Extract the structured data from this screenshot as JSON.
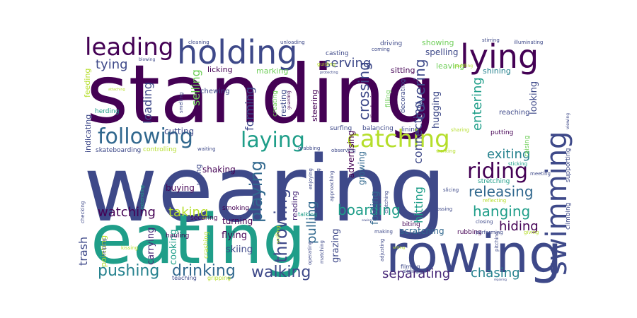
{
  "wordcloud": {
    "palette": {
      "dark_purple": "#440154",
      "purple": "#482878",
      "indigo": "#3e4989",
      "blue": "#31688e",
      "teal_blue": "#26828e",
      "teal": "#1f9e89",
      "green_teal": "#35b779",
      "green": "#6ece58",
      "lime": "#b5de2b",
      "yellow": "#fde725"
    },
    "words": [
      {
        "text": "standing",
        "weight": 100,
        "color": "#440154"
      },
      {
        "text": "wearing",
        "weight": 96,
        "color": "#3e4989"
      },
      {
        "text": "eating",
        "weight": 74,
        "color": "#1f9e89"
      },
      {
        "text": "rowing",
        "weight": 56,
        "color": "#3e4989"
      },
      {
        "text": "holding",
        "weight": 40,
        "color": "#3e4989"
      },
      {
        "text": "lying",
        "weight": 38,
        "color": "#440154"
      },
      {
        "text": "swimming",
        "weight": 36,
        "color": "#3e4989"
      },
      {
        "text": "leading",
        "weight": 28,
        "color": "#440154"
      },
      {
        "text": "following",
        "weight": 26,
        "color": "#31688e"
      },
      {
        "text": "laying",
        "weight": 25,
        "color": "#1f9e89"
      },
      {
        "text": "catching",
        "weight": 25,
        "color": "#b5de2b"
      },
      {
        "text": "riding",
        "weight": 22,
        "color": "#440154"
      },
      {
        "text": "pushing",
        "weight": 19,
        "color": "#26828e"
      },
      {
        "text": "drinking",
        "weight": 19,
        "color": "#31688e"
      },
      {
        "text": "walking",
        "weight": 19,
        "color": "#3e4989"
      },
      {
        "text": "throwing",
        "weight": 18,
        "color": "#3e4989"
      },
      {
        "text": "playing",
        "weight": 17,
        "color": "#31688e"
      },
      {
        "text": "watching",
        "weight": 15,
        "color": "#440154"
      },
      {
        "text": "boarding",
        "weight": 15,
        "color": "#1f9e89"
      },
      {
        "text": "separating",
        "weight": 15,
        "color": "#482878"
      },
      {
        "text": "releasing",
        "weight": 14,
        "color": "#31688e"
      },
      {
        "text": "hanging",
        "weight": 14,
        "color": "#1f9e89"
      },
      {
        "text": "tying",
        "weight": 13,
        "color": "#3e4989"
      },
      {
        "text": "exiting",
        "weight": 13,
        "color": "#26828e"
      },
      {
        "text": "chasing",
        "weight": 12,
        "color": "#26828e"
      },
      {
        "text": "taking",
        "weight": 13,
        "color": "#b5de2b"
      },
      {
        "text": "covering",
        "weight": 13,
        "color": "#3e4989"
      },
      {
        "text": "crossing",
        "weight": 12,
        "color": "#3e4989"
      },
      {
        "text": "pulling",
        "weight": 12,
        "color": "#31688e"
      },
      {
        "text": "serving",
        "weight": 12,
        "color": "#3e4989"
      },
      {
        "text": "hiding",
        "weight": 12,
        "color": "#440154"
      },
      {
        "text": "connecting",
        "weight": 11,
        "color": "#3e4989"
      },
      {
        "text": "entering",
        "weight": 11,
        "color": "#1f9e89"
      },
      {
        "text": "forming",
        "weight": 11,
        "color": "#3e4989"
      },
      {
        "text": "selling",
        "weight": 11,
        "color": "#6ece58"
      },
      {
        "text": "loading",
        "weight": 10,
        "color": "#3e4989"
      },
      {
        "text": "trash",
        "weight": 10,
        "color": "#3e4989"
      },
      {
        "text": "hitting",
        "weight": 10,
        "color": "#1f9e89"
      },
      {
        "text": "folding",
        "weight": 9,
        "color": "#31688e"
      },
      {
        "text": "cutting",
        "weight": 9,
        "color": "#3e4989"
      },
      {
        "text": "carrying",
        "weight": 9,
        "color": "#482878"
      },
      {
        "text": "cooking",
        "weight": 9,
        "color": "#1f9e89"
      },
      {
        "text": "flying",
        "weight": 9,
        "color": "#440154"
      },
      {
        "text": "skiing",
        "weight": 9,
        "color": "#3e4989"
      },
      {
        "text": "turning",
        "weight": 8,
        "color": "#440154"
      },
      {
        "text": "buying",
        "weight": 8,
        "color": "#440154"
      },
      {
        "text": "shaking",
        "weight": 8,
        "color": "#440154"
      },
      {
        "text": "scratching",
        "weight": 8,
        "color": "#31688e"
      },
      {
        "text": "spelling",
        "weight": 8,
        "color": "#3e4989"
      },
      {
        "text": "showing",
        "weight": 8,
        "color": "#6ece58"
      },
      {
        "text": "leaving",
        "weight": 8,
        "color": "#6ece58"
      },
      {
        "text": "shining",
        "weight": 8,
        "color": "#26828e"
      },
      {
        "text": "marking",
        "weight": 8,
        "color": "#6ece58"
      },
      {
        "text": "looking",
        "weight": 8,
        "color": "#3e4989"
      },
      {
        "text": "hugging",
        "weight": 8,
        "color": "#3e4989"
      },
      {
        "text": "grazing",
        "weight": 8,
        "color": "#3e4989"
      },
      {
        "text": "reading",
        "weight": 8,
        "color": "#482878"
      },
      {
        "text": "advertising",
        "weight": 8,
        "color": "#440154"
      },
      {
        "text": "growing",
        "weight": 8,
        "color": "#31688e"
      },
      {
        "text": "sitting",
        "weight": 7,
        "color": "#440154"
      },
      {
        "text": "licking",
        "weight": 7,
        "color": "#440154"
      },
      {
        "text": "resting",
        "weight": 7,
        "color": "#3e4989"
      },
      {
        "text": "steering",
        "weight": 7,
        "color": "#440154"
      },
      {
        "text": "using",
        "weight": 7,
        "color": "#3e4989"
      },
      {
        "text": "pointing",
        "weight": 7,
        "color": "#b5de2b"
      },
      {
        "text": "feeding",
        "weight": 7,
        "color": "#b5de2b"
      },
      {
        "text": "indicating",
        "weight": 7,
        "color": "#3e4989"
      },
      {
        "text": "chewing",
        "weight": 6,
        "color": "#3e4989"
      },
      {
        "text": "reaching",
        "weight": 6,
        "color": "#3e4989"
      },
      {
        "text": "stretching",
        "weight": 6,
        "color": "#1f9e89"
      },
      {
        "text": "surfing",
        "weight": 6,
        "color": "#3e4989"
      },
      {
        "text": "balancing",
        "weight": 6,
        "color": "#3e4989"
      },
      {
        "text": "lining",
        "weight": 6,
        "color": "#3e4989"
      },
      {
        "text": "putting",
        "weight": 6,
        "color": "#440154"
      },
      {
        "text": "filling",
        "weight": 6,
        "color": "#6ece58"
      },
      {
        "text": "displaying",
        "weight": 6,
        "color": "#440154"
      },
      {
        "text": "decorating",
        "weight": 6,
        "color": "#3e4989"
      },
      {
        "text": "creating",
        "weight": 6,
        "color": "#6ece58"
      },
      {
        "text": "supporting",
        "weight": 6,
        "color": "#3e4989"
      },
      {
        "text": "climbing",
        "weight": 6,
        "color": "#3e4989"
      },
      {
        "text": "raising",
        "weight": 6,
        "color": "#6ece58"
      },
      {
        "text": "biting",
        "weight": 6,
        "color": "#440154"
      },
      {
        "text": "rubbing",
        "weight": 6,
        "color": "#440154"
      },
      {
        "text": "casting",
        "weight": 6,
        "color": "#3e4989"
      },
      {
        "text": "driving",
        "weight": 6,
        "color": "#3e4989"
      },
      {
        "text": "herding",
        "weight": 6,
        "color": "#1f9e89"
      },
      {
        "text": "controlling",
        "weight": 6,
        "color": "#b5de2b"
      },
      {
        "text": "skateboarding",
        "weight": 6,
        "color": "#3e4989"
      },
      {
        "text": "smoking",
        "weight": 6,
        "color": "#440154"
      },
      {
        "text": "securing",
        "weight": 6,
        "color": "#440154"
      },
      {
        "text": "hauling",
        "weight": 6,
        "color": "#440154"
      },
      {
        "text": "crashing",
        "weight": 6,
        "color": "#b5de2b"
      },
      {
        "text": "teaching",
        "weight": 5,
        "color": "#3e4989"
      },
      {
        "text": "gripping",
        "weight": 5,
        "color": "#b5de2b"
      },
      {
        "text": "filming",
        "weight": 5,
        "color": "#3e4989"
      },
      {
        "text": "sliding",
        "weight": 5,
        "color": "#3e4989"
      },
      {
        "text": "working",
        "weight": 5,
        "color": "#b5de2b"
      },
      {
        "text": "sharing",
        "weight": 5,
        "color": "#b5de2b"
      },
      {
        "text": "checking",
        "weight": 5,
        "color": "#3e4989"
      },
      {
        "text": "helping",
        "weight": 5,
        "color": "#3e4989"
      },
      {
        "text": "kissing",
        "weight": 5,
        "color": "#b5de2b"
      },
      {
        "text": "extending",
        "weight": 5,
        "color": "#1f9e89"
      },
      {
        "text": "smelling",
        "weight": 5,
        "color": "#3e4989"
      },
      {
        "text": "attaching",
        "weight": 4,
        "color": "#b5de2b"
      },
      {
        "text": "blowing",
        "weight": 4,
        "color": "#3e4989"
      },
      {
        "text": "cleaning",
        "weight": 5,
        "color": "#3e4989"
      },
      {
        "text": "unloading",
        "weight": 5,
        "color": "#3e4989"
      },
      {
        "text": "coming",
        "weight": 5,
        "color": "#3e4989"
      },
      {
        "text": "stirring",
        "weight": 5,
        "color": "#3e4989"
      },
      {
        "text": "illuminating",
        "weight": 5,
        "color": "#3e4989"
      },
      {
        "text": "guiding",
        "weight": 5,
        "color": "#b5de2b"
      },
      {
        "text": "protecting",
        "weight": 4,
        "color": "#3e4989"
      },
      {
        "text": "paddling",
        "weight": 5,
        "color": "#b5de2b"
      },
      {
        "text": "guarding",
        "weight": 4,
        "color": "#440154"
      },
      {
        "text": "viewing",
        "weight": 4,
        "color": "#3e4989"
      },
      {
        "text": "sticking",
        "weight": 5,
        "color": "#1f9e89"
      },
      {
        "text": "meeting",
        "weight": 5,
        "color": "#3e4989"
      },
      {
        "text": "waiting",
        "weight": 5,
        "color": "#3e4989"
      },
      {
        "text": "grabbing",
        "weight": 5,
        "color": "#3e4989"
      },
      {
        "text": "observing",
        "weight": 5,
        "color": "#3e4989"
      },
      {
        "text": "enjoying",
        "weight": 5,
        "color": "#3e4989"
      },
      {
        "text": "preparing",
        "weight": 5,
        "color": "#3e4989"
      },
      {
        "text": "approaching",
        "weight": 5,
        "color": "#3e4989"
      },
      {
        "text": "clutching",
        "weight": 5,
        "color": "#3e4989"
      },
      {
        "text": "slicing",
        "weight": 5,
        "color": "#3e4989"
      },
      {
        "text": "tossing",
        "weight": 5,
        "color": "#3e4989"
      },
      {
        "text": "reflecting",
        "weight": 5,
        "color": "#b5de2b"
      },
      {
        "text": "sniffing",
        "weight": 5,
        "color": "#b5de2b"
      },
      {
        "text": "talking",
        "weight": 5,
        "color": "#1f9e89"
      },
      {
        "text": "closing",
        "weight": 5,
        "color": "#3e4989"
      },
      {
        "text": "performing",
        "weight": 5,
        "color": "#3e4989"
      },
      {
        "text": "giving",
        "weight": 5,
        "color": "#b5de2b"
      },
      {
        "text": "making",
        "weight": 5,
        "color": "#3e4989"
      },
      {
        "text": "pitching",
        "weight": 5,
        "color": "#3e4989"
      },
      {
        "text": "writing",
        "weight": 4,
        "color": "#b5de2b"
      },
      {
        "text": "repairing",
        "weight": 4,
        "color": "#3e4989"
      },
      {
        "text": "adjusting",
        "weight": 5,
        "color": "#3e4989"
      },
      {
        "text": "operating",
        "weight": 5,
        "color": "#3e4989"
      },
      {
        "text": "matching",
        "weight": 5,
        "color": "#3e4989"
      },
      {
        "text": "sewing",
        "weight": 4,
        "color": "#3e4989"
      }
    ]
  }
}
